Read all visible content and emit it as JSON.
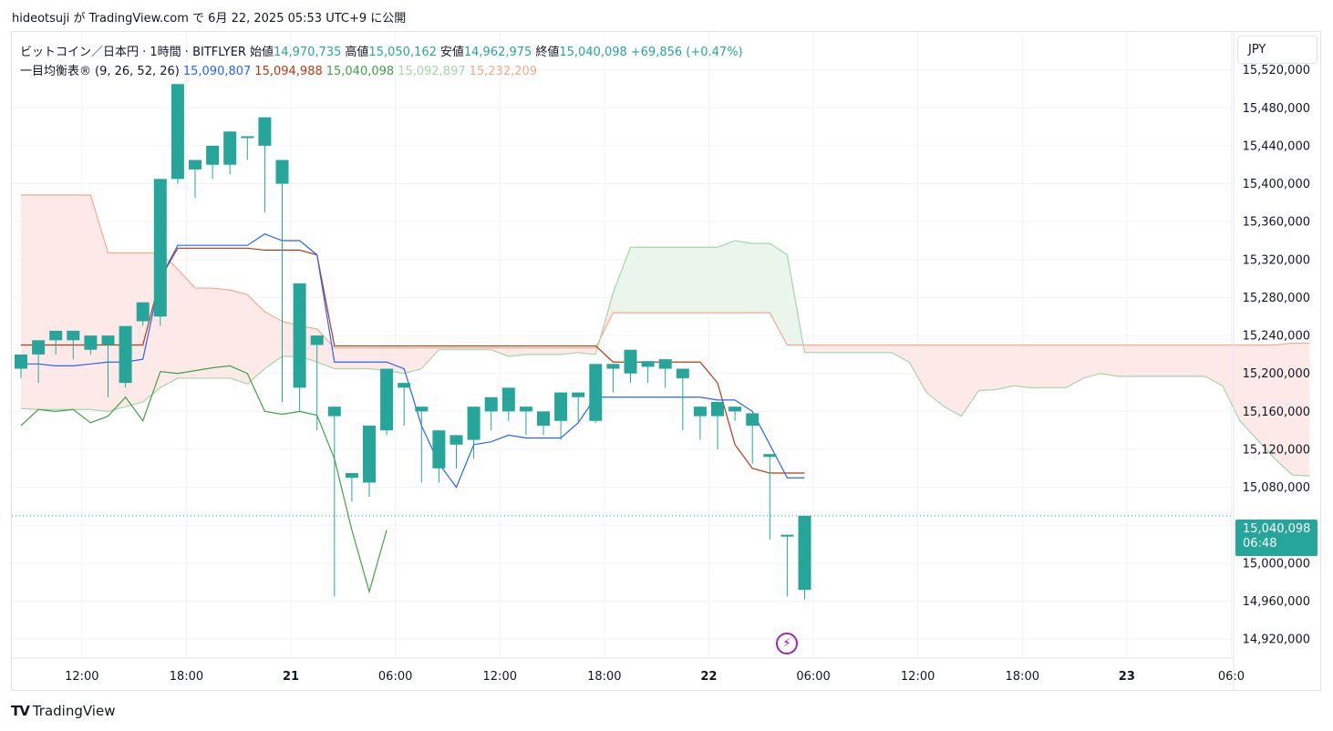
{
  "caption": "hideotsuji が TradingView.com で 6月 22, 2025 05:53 UTC+9 に公開",
  "brand": {
    "logo": "TV",
    "name": "TradingView"
  },
  "currency": "JPY",
  "symbol_legend": {
    "title": "ビットコイン／日本円 · 1時間 · BITFLYER",
    "open_label": "始値",
    "open": "14,970,735",
    "high_label": "高値",
    "high": "15,050,162",
    "low_label": "安値",
    "low": "14,962,975",
    "close_label": "終値",
    "close": "15,040,098",
    "change": "+69,856 (+0.47%)"
  },
  "ichimoku_legend": {
    "name": "一目均衡表®",
    "params": "(9, 26, 52, 26)",
    "values": [
      "15,090,807",
      "15,094,988",
      "15,040,098",
      "15,092,897",
      "15,232,209"
    ]
  },
  "last_price": {
    "value": "15,040,098",
    "countdown": "06:48"
  },
  "colors": {
    "up": "#26a69a",
    "down": "#ef5350",
    "tenkan": "#2962ff",
    "kijun": "#b33a13",
    "chikou": "#43a047",
    "span_a": "#a5d6a7",
    "span_b": "#f4a98a",
    "cloud_up": "#e8f5e9",
    "cloud_down": "#fde8e6"
  },
  "chart_data": {
    "type": "candlestick",
    "y_axis": {
      "range": [
        14900000,
        15560000
      ],
      "ticks": [
        "15,520,000",
        "15,480,000",
        "15,440,000",
        "15,400,000",
        "15,360,000",
        "15,320,000",
        "15,280,000",
        "15,240,000",
        "15,200,000",
        "15,160,000",
        "15,120,000",
        "15,080,000",
        "15,040,000",
        "15,000,000",
        "14,960,000",
        "14,920,000"
      ]
    },
    "x_axis": {
      "ticks": [
        {
          "bar": 3.5,
          "label": "12:00"
        },
        {
          "bar": 9.5,
          "label": "18:00"
        },
        {
          "bar": 15.5,
          "label": "21"
        },
        {
          "bar": 21.5,
          "label": "06:00"
        },
        {
          "bar": 27.5,
          "label": "12:00"
        },
        {
          "bar": 33.5,
          "label": "18:00"
        },
        {
          "bar": 39.5,
          "label": "22"
        },
        {
          "bar": 45.5,
          "label": "06:00"
        },
        {
          "bar": 51.5,
          "label": "12:00"
        },
        {
          "bar": 57.5,
          "label": "18:00"
        },
        {
          "bar": 63.5,
          "label": "23"
        },
        {
          "bar": 69.5,
          "label": "06:0"
        }
      ]
    },
    "candles": [
      [
        15205000,
        15220000,
        15195000,
        15220000
      ],
      [
        15220000,
        15225000,
        15190000,
        15235000
      ],
      [
        15235000,
        15240000,
        15220000,
        15245000
      ],
      [
        15235000,
        15230000,
        15215000,
        15245000
      ],
      [
        15225000,
        15235000,
        15220000,
        15240000
      ],
      [
        15230000,
        15185000,
        15175000,
        15240000
      ],
      [
        15190000,
        15245000,
        15185000,
        15250000
      ],
      [
        15255000,
        15270000,
        15250000,
        15275000
      ],
      [
        15260000,
        15405000,
        15250000,
        15405000
      ],
      [
        15405000,
        15415000,
        15400000,
        15505000
      ],
      [
        15415000,
        15418000,
        15385000,
        15425000
      ],
      [
        15420000,
        15428000,
        15405000,
        15440000
      ],
      [
        15420000,
        15450000,
        15410000,
        15455000
      ],
      [
        15450000,
        15440000,
        15425000,
        15450000
      ],
      [
        15440000,
        15405000,
        15370000,
        15470000
      ],
      [
        15400000,
        15180000,
        15170000,
        15425000
      ],
      [
        15185000,
        15230000,
        15160000,
        15295000
      ],
      [
        15230000,
        15145000,
        15140000,
        15240000
      ],
      [
        15155000,
        15105000,
        14965000,
        15165000
      ],
      [
        15090000,
        15085000,
        15065000,
        15095000
      ],
      [
        15085000,
        15135000,
        15070000,
        15145000
      ],
      [
        15140000,
        15185000,
        15135000,
        15205000
      ],
      [
        15185000,
        15155000,
        15145000,
        15190000
      ],
      [
        15160000,
        15100000,
        15085000,
        15165000
      ],
      [
        15100000,
        15130000,
        15085000,
        15140000
      ],
      [
        15125000,
        15130000,
        15100000,
        15135000
      ],
      [
        15130000,
        15160000,
        15110000,
        15165000
      ],
      [
        15160000,
        15158000,
        15140000,
        15175000
      ],
      [
        15160000,
        15163000,
        15150000,
        15185000
      ],
      [
        15160000,
        15145000,
        15135000,
        15165000
      ],
      [
        15145000,
        15150000,
        15135000,
        15160000
      ],
      [
        15150000,
        15178000,
        15130000,
        15180000
      ],
      [
        15175000,
        15150000,
        15148000,
        15180000
      ],
      [
        15150000,
        15205000,
        15148000,
        15210000
      ],
      [
        15205000,
        15202000,
        15180000,
        15210000
      ],
      [
        15200000,
        15207000,
        15190000,
        15225000
      ],
      [
        15207000,
        15205000,
        15190000,
        15213000
      ],
      [
        15205000,
        15195000,
        15185000,
        15215000
      ],
      [
        15195000,
        15155000,
        15140000,
        15205000
      ],
      [
        15155000,
        15152000,
        15130000,
        15165000
      ],
      [
        15155000,
        15160000,
        15120000,
        15170000
      ],
      [
        15160000,
        15158000,
        15150000,
        15165000
      ],
      [
        15145000,
        15112000,
        15105000,
        15158000
      ],
      [
        15112000,
        15035000,
        15025000,
        15115000
      ],
      [
        15030000,
        14972000,
        14965000,
        15030000
      ],
      [
        14972000,
        15040000,
        14962000,
        15050000
      ]
    ],
    "tenkan": [
      15210000,
      15210000,
      15208000,
      15208000,
      15210000,
      15212000,
      15212000,
      15215000,
      15300000,
      15335000,
      15335000,
      15335000,
      15335000,
      15335000,
      15347000,
      15340000,
      15340000,
      15325000,
      15212000,
      15212000,
      15212000,
      15212000,
      15205000,
      15145000,
      15105000,
      15080000,
      15125000,
      15128000,
      15135000,
      15132000,
      15132000,
      15132000,
      15148000,
      15175000,
      15175000,
      15175000,
      15175000,
      15175000,
      15175000,
      15175000,
      15172000,
      15172000,
      15160000,
      15125000,
      15090000,
      15090000
    ],
    "kijun": [
      15230000,
      15230000,
      15230000,
      15230000,
      15230000,
      15230000,
      15230000,
      15230000,
      15300000,
      15332000,
      15332000,
      15332000,
      15332000,
      15332000,
      15330000,
      15330000,
      15330000,
      15325000,
      15229000,
      15229000,
      15229000,
      15229000,
      15229000,
      15229000,
      15229000,
      15229000,
      15229000,
      15229000,
      15229000,
      15229000,
      15229000,
      15229000,
      15229000,
      15229000,
      15212000,
      15212000,
      15212000,
      15212000,
      15212000,
      15212000,
      15190000,
      15125000,
      15100000,
      15095000,
      15095000,
      15095000
    ],
    "chikou": [
      15145000,
      15162000,
      15160000,
      15162000,
      15148000,
      15155000,
      15175000,
      15150000,
      15202000,
      15200000,
      15203000,
      15206000,
      15208000,
      15200000,
      15160000,
      15157000,
      15160000,
      15156000,
      15110000,
      15035000,
      14970000,
      15035000
    ],
    "span_a": [
      15163000,
      15162000,
      15162000,
      15162000,
      15162000,
      15160000,
      15165000,
      15170000,
      15185000,
      15195000,
      15195000,
      15195000,
      15195000,
      15189000,
      15205000,
      15218000,
      15218000,
      15212000,
      15205000,
      15205000,
      15205000,
      15203000,
      15200000,
      15205000,
      15225000,
      15225000,
      15225000,
      15225000,
      15218000,
      15220000,
      15220000,
      15220000,
      15222000,
      15220000,
      15285000,
      15333000,
      15333000,
      15333000,
      15333000,
      15333000,
      15333000,
      15340000,
      15337000,
      15337000,
      15325000,
      15222000,
      15222000,
      15222000,
      15222000,
      15222000,
      15222000,
      15212000,
      15180000,
      15165000,
      15155000,
      15182000,
      15183000,
      15187000,
      15185000,
      15185000,
      15185000,
      15195000,
      15200000,
      15197000,
      15197000,
      15197000,
      15197000,
      15197000,
      15197000,
      15187000,
      15150000,
      15130000,
      15110000,
      15093000,
      15092000
    ],
    "span_b": [
      15388000,
      15388000,
      15388000,
      15388000,
      15388000,
      15327000,
      15327000,
      15327000,
      15327000,
      15310000,
      15290000,
      15290000,
      15288000,
      15283000,
      15265000,
      15255000,
      15250000,
      15247000,
      15227000,
      15227000,
      15227000,
      15227000,
      15227000,
      15227000,
      15227000,
      15227000,
      15227000,
      15227000,
      15227000,
      15227000,
      15227000,
      15227000,
      15227000,
      15227000,
      15264000,
      15264000,
      15264000,
      15264000,
      15264000,
      15264000,
      15264000,
      15264000,
      15264000,
      15264000,
      15230000,
      15230000,
      15230000,
      15230000,
      15230000,
      15230000,
      15230000,
      15230000,
      15230000,
      15230000,
      15230000,
      15230000,
      15230000,
      15230000,
      15230000,
      15230000,
      15230000,
      15230000,
      15230000,
      15230000,
      15230000,
      15230000,
      15230000,
      15230000,
      15230000,
      15230000,
      15230000,
      15230000,
      15230000,
      15232000,
      15232000
    ]
  }
}
